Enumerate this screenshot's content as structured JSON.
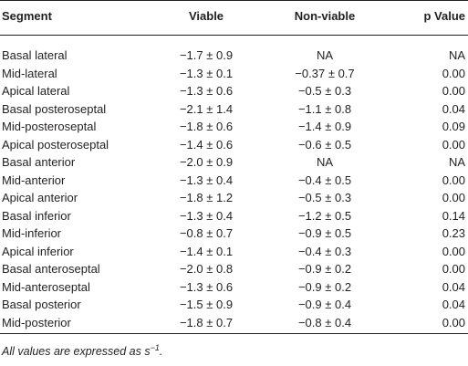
{
  "table": {
    "columns": [
      "Segment",
      "Viable",
      "Non-viable",
      "p Value"
    ],
    "rows": [
      [
        "Basal lateral",
        "−1.7 ± 0.9",
        "NA",
        "NA"
      ],
      [
        "Mid-lateral",
        "−1.3 ± 0.1",
        "−0.37 ± 0.7",
        "0.00"
      ],
      [
        "Apical lateral",
        "−1.3 ± 0.6",
        "−0.5 ± 0.3",
        "0.00"
      ],
      [
        "Basal posteroseptal",
        "−2.1 ± 1.4",
        "−1.1 ± 0.8",
        "0.04"
      ],
      [
        "Mid-posteroseptal",
        "−1.8 ± 0.6",
        "−1.4 ± 0.9",
        "0.09"
      ],
      [
        "Apical posteroseptal",
        "−1.4 ± 0.6",
        "−0.6 ± 0.5",
        "0.00"
      ],
      [
        "Basal anterior",
        "−2.0 ± 0.9",
        "NA",
        "NA"
      ],
      [
        "Mid-anterior",
        "−1.3 ± 0.4",
        "−0.4 ± 0.5",
        "0.00"
      ],
      [
        "Apical anterior",
        "−1.8 ± 1.2",
        "−0.5 ± 0.3",
        "0.00"
      ],
      [
        "Basal inferior",
        "−1.3 ± 0.4",
        "−1.2 ± 0.5",
        "0.14"
      ],
      [
        "Mid-inferior",
        "−0.8 ± 0.7",
        "−0.9 ± 0.5",
        "0.23"
      ],
      [
        "Apical inferior",
        "−1.4 ± 0.1",
        "−0.4 ± 0.3",
        "0.00"
      ],
      [
        "Basal anteroseptal",
        "−2.0 ± 0.8",
        "−0.9 ± 0.2",
        "0.00"
      ],
      [
        "Mid-anteroseptal",
        "−1.3 ± 0.6",
        "−0.9 ± 0.2",
        "0.04"
      ],
      [
        "Basal posterior",
        "−1.5 ± 0.9",
        "−0.9 ± 0.4",
        "0.04"
      ],
      [
        "Mid-posterior",
        "−1.8 ± 0.7",
        "−0.8 ± 0.4",
        "0.00"
      ]
    ]
  },
  "footnote": {
    "text": "All values are expressed as s",
    "superscript": "−1",
    "end": "."
  }
}
